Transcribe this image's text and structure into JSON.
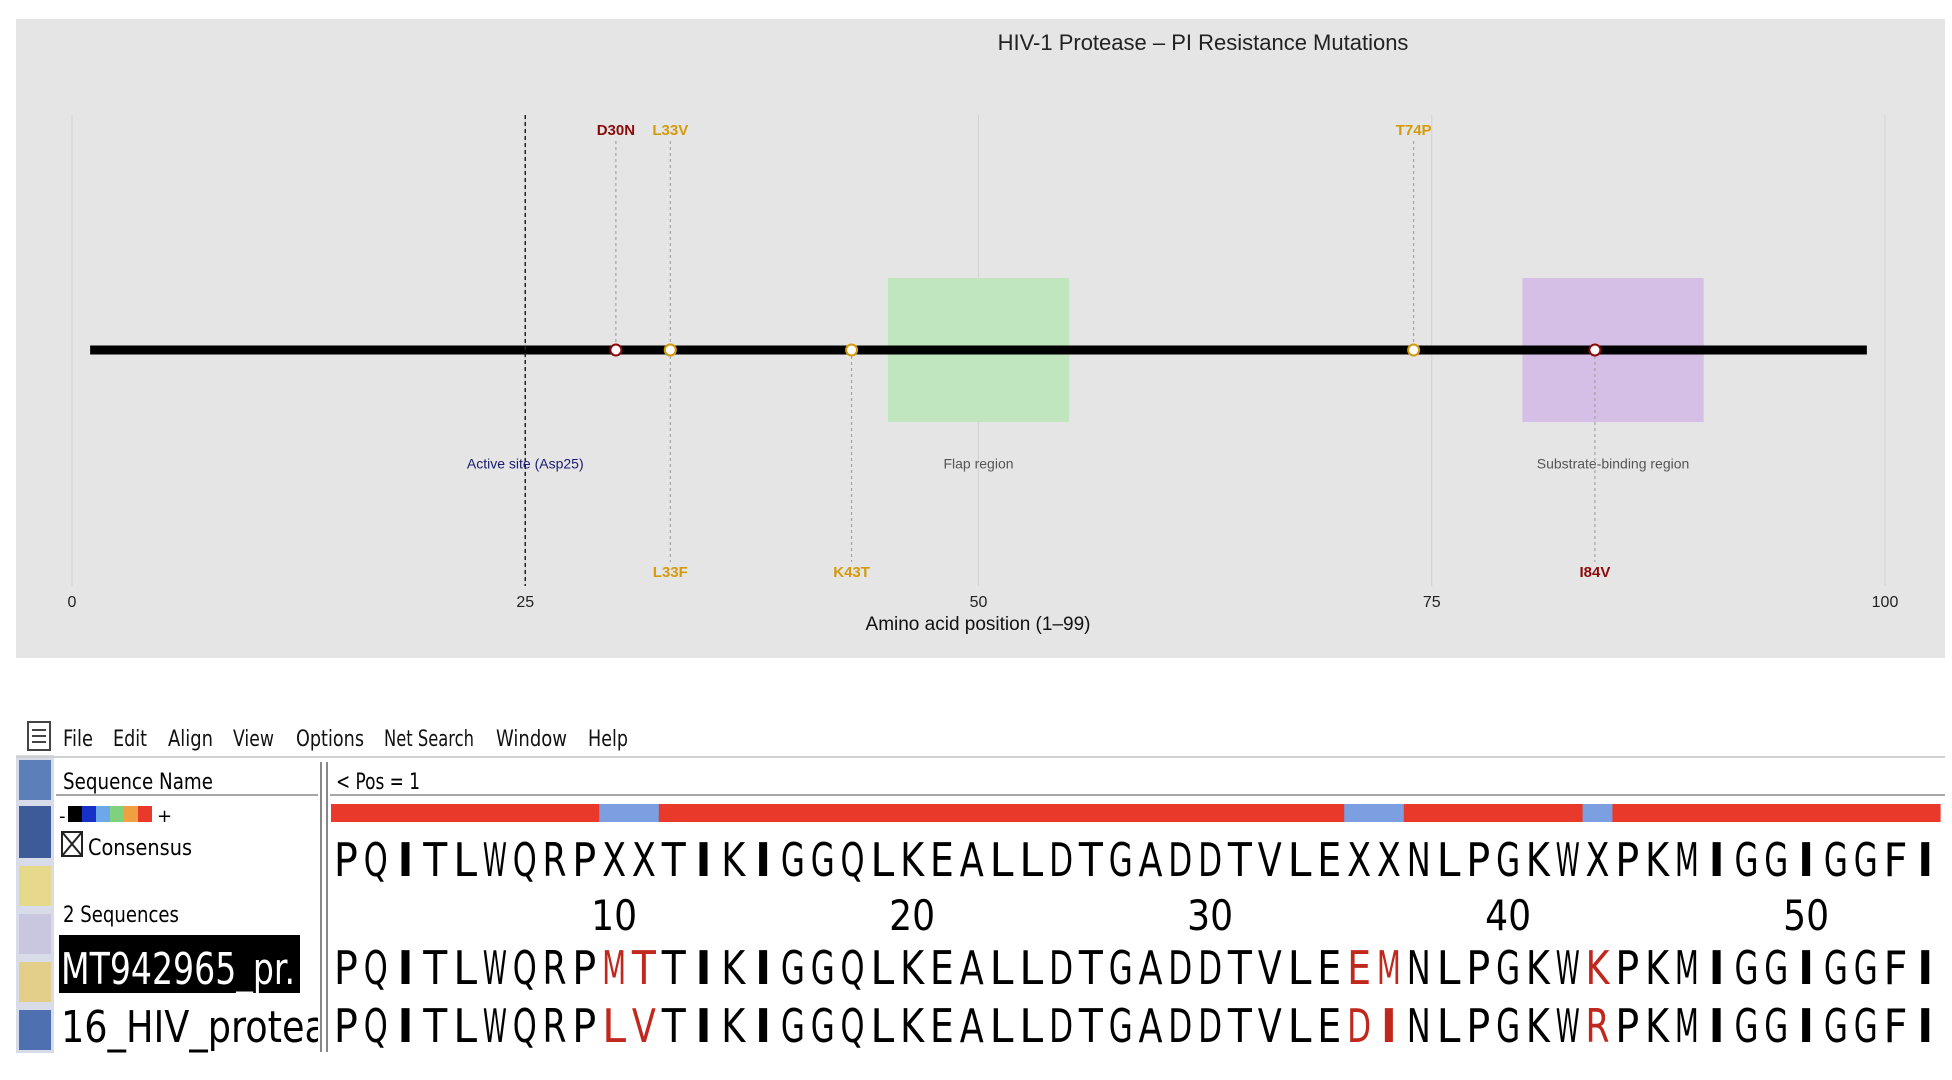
{
  "chart_data": {
    "type": "mutation-map",
    "title": "HIV-1 Protease – PI Resistance Mutations",
    "x_label": "Amino acid position (1–99)",
    "xlim": [
      0,
      100
    ],
    "xticks": [
      0,
      25,
      50,
      75,
      100
    ],
    "grid": true,
    "backbone": [
      1,
      99
    ],
    "active_site": {
      "label": "Active site (Asp25)",
      "position": 25,
      "color": "#1a1a6e"
    },
    "regions": [
      {
        "label": "Flap region",
        "start": 45,
        "end": 55,
        "color": "#bfe6bd"
      },
      {
        "label": "Substrate-binding region",
        "start": 80,
        "end": 90,
        "color": "#d5bfe6"
      }
    ],
    "mutations": [
      {
        "label": "D30N",
        "position": 30,
        "color": "#8b0a0a",
        "side": "top"
      },
      {
        "label": "L33V",
        "position": 33,
        "color": "#d49a0c",
        "side": "top"
      },
      {
        "label": "T74P",
        "position": 74,
        "color": "#d49a0c",
        "side": "top"
      },
      {
        "label": "L33F",
        "position": 33,
        "color": "#d49a0c",
        "side": "bottom"
      },
      {
        "label": "K43T",
        "position": 43,
        "color": "#d49a0c",
        "side": "bottom"
      },
      {
        "label": "I84V",
        "position": 84,
        "color": "#8b0a0a",
        "side": "bottom"
      }
    ]
  },
  "menu": [
    "File",
    "Edit",
    "Align",
    "View",
    "Options",
    "Net Search",
    "Window",
    "Help"
  ],
  "alignment": {
    "name_header": "Sequence Name",
    "position_label": "< Pos = 1",
    "scale_minus": "-",
    "scale_plus": "+",
    "consensus_label": "Consensus",
    "count_label": "2 Sequences",
    "ruler": [
      10,
      20,
      30,
      40,
      50
    ],
    "mismatch_color": "#c0281e",
    "conserved_color": "#e8392b",
    "variable_color": "#7b9fe0",
    "consensus": [
      "P",
      "Q",
      "I",
      "T",
      "L",
      "W",
      "Q",
      "R",
      "P",
      "X",
      "X",
      "T",
      "I",
      "K",
      "I",
      "G",
      "G",
      "Q",
      "L",
      "K",
      "E",
      "A",
      "L",
      "L",
      "D",
      "T",
      "G",
      "A",
      "D",
      "D",
      "T",
      "V",
      "L",
      "E",
      "X",
      "X",
      "N",
      "L",
      "P",
      "G",
      "K",
      "W",
      "X",
      "P",
      "K",
      "M",
      "I",
      "G",
      "G",
      "I",
      "G",
      "G",
      "F",
      "I"
    ],
    "sequences": [
      {
        "name": "MT942965_pr.",
        "residues": [
          "P",
          "Q",
          "I",
          "T",
          "L",
          "W",
          "Q",
          "R",
          "P",
          "M",
          "T",
          "T",
          "I",
          "K",
          "I",
          "G",
          "G",
          "Q",
          "L",
          "K",
          "E",
          "A",
          "L",
          "L",
          "D",
          "T",
          "G",
          "A",
          "D",
          "D",
          "T",
          "V",
          "L",
          "E",
          "E",
          "M",
          "N",
          "L",
          "P",
          "G",
          "K",
          "W",
          "K",
          "P",
          "K",
          "M",
          "I",
          "G",
          "G",
          "I",
          "G",
          "G",
          "F",
          "I"
        ]
      },
      {
        "name": "16_HIV_protea",
        "residues": [
          "P",
          "Q",
          "I",
          "T",
          "L",
          "W",
          "Q",
          "R",
          "P",
          "L",
          "V",
          "T",
          "I",
          "K",
          "I",
          "G",
          "G",
          "Q",
          "L",
          "K",
          "E",
          "A",
          "L",
          "L",
          "D",
          "T",
          "G",
          "A",
          "D",
          "D",
          "T",
          "V",
          "L",
          "E",
          "D",
          "I",
          "N",
          "L",
          "P",
          "G",
          "K",
          "W",
          "R",
          "P",
          "K",
          "M",
          "I",
          "G",
          "G",
          "I",
          "G",
          "G",
          "F",
          "I"
        ]
      }
    ]
  }
}
